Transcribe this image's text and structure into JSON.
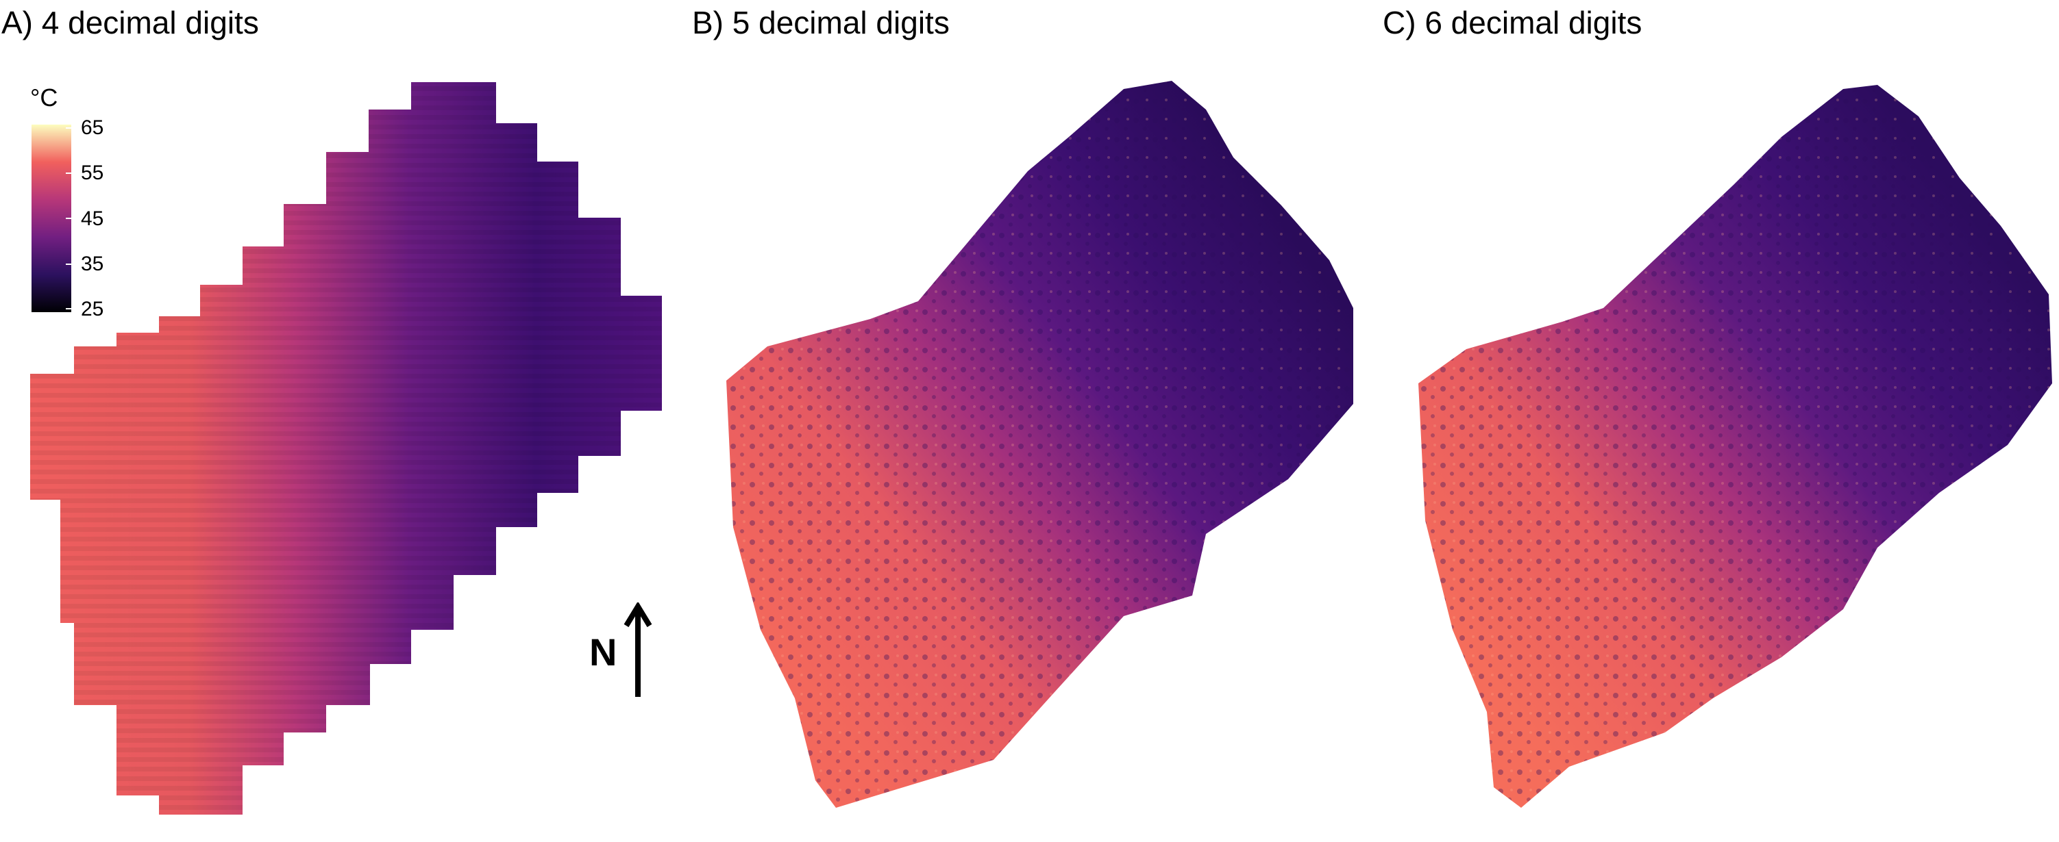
{
  "panels": [
    {
      "id": "A",
      "title": "A) 4 decimal digits"
    },
    {
      "id": "B",
      "title": "B) 5 decimal digits"
    },
    {
      "id": "C",
      "title": "C) 6 decimal digits"
    }
  ],
  "legend": {
    "unit": "°C",
    "ticks": [
      "65",
      "55",
      "45",
      "35",
      "25"
    ],
    "colors": [
      "#000004",
      "#2c115f",
      "#721f81",
      "#b73779",
      "#f1605d",
      "#fcfdbf"
    ]
  },
  "north": {
    "label": "N",
    "icon": "north-arrow-icon"
  },
  "palette": {
    "hot": "#f1605d",
    "warm": "#b73779",
    "mid": "#721f81",
    "cool": "#3b0f70",
    "cold": "#1a0b3d"
  }
}
